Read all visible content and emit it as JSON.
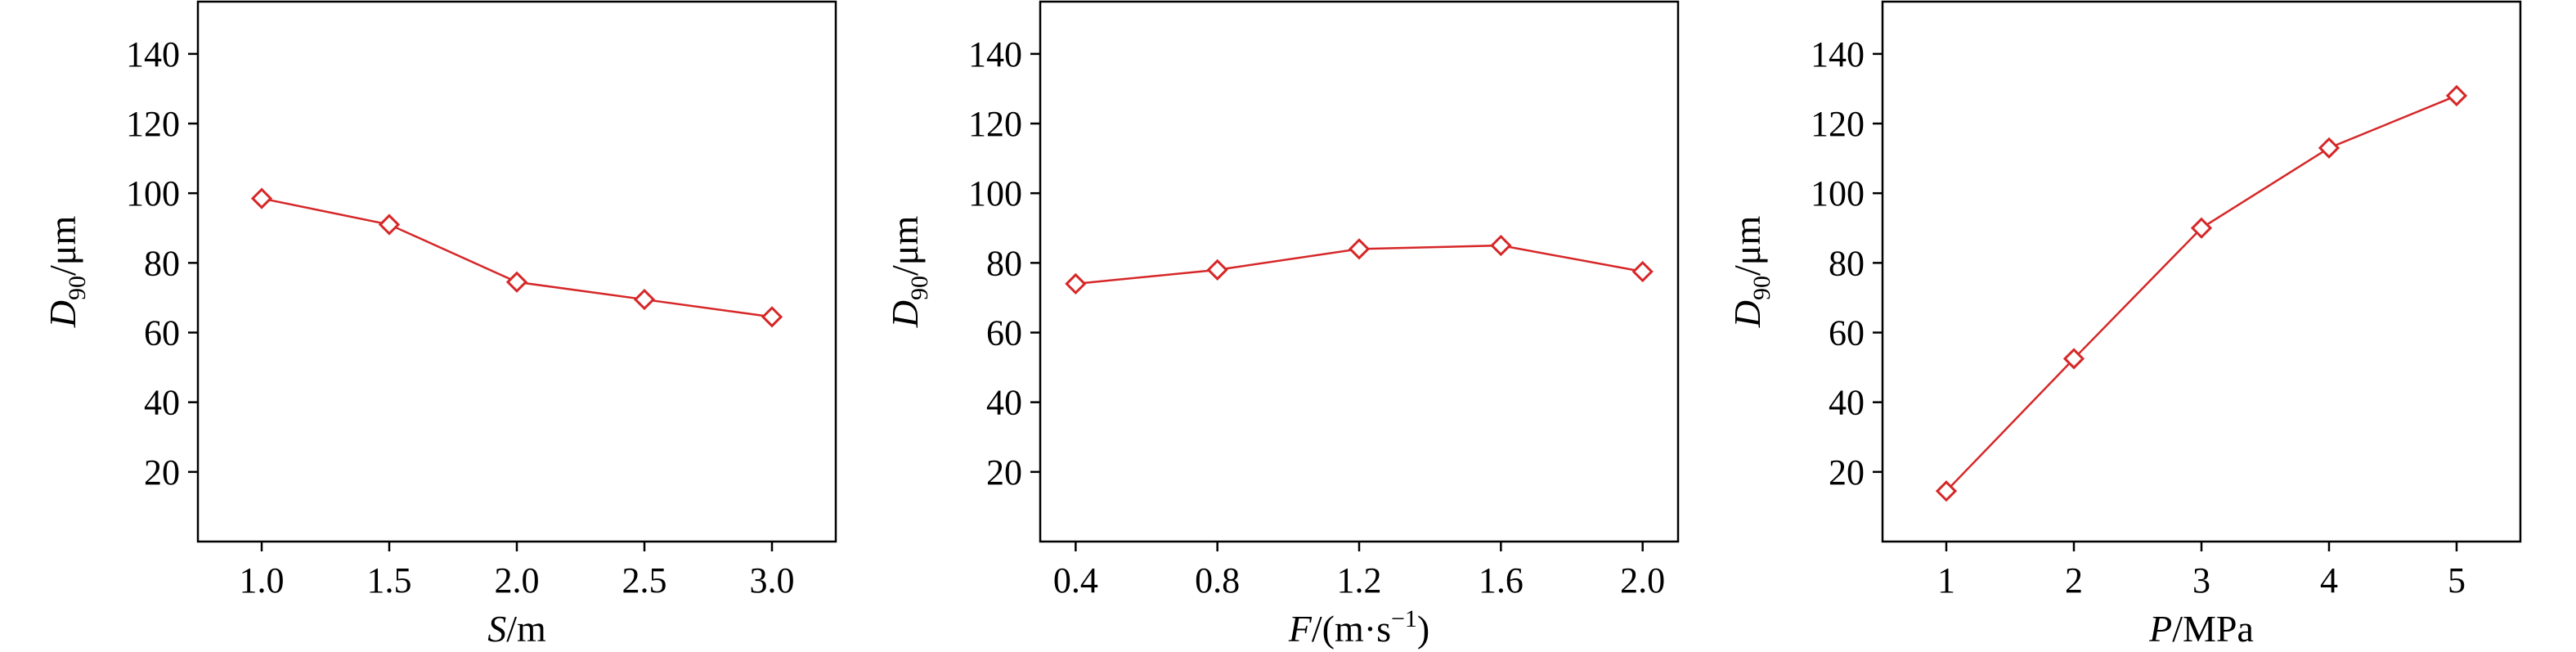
{
  "chart_data": [
    {
      "type": "line",
      "x": [
        1.0,
        1.5,
        2.0,
        2.5,
        3.0
      ],
      "x_tick_labels": [
        "1.0",
        "1.5",
        "2.0",
        "2.5",
        "3.0"
      ],
      "series": [
        {
          "values": [
            98.5,
            91,
            74.5,
            69.5,
            64.5
          ]
        }
      ],
      "xlabel": {
        "var": "S",
        "unit": "/m",
        "sup": ""
      },
      "ylabel": {
        "var": "D",
        "sub": "90",
        "unit": "/μm"
      },
      "xlim": [
        0.75,
        3.25
      ],
      "ylim": [
        0,
        155
      ],
      "y_ticks": [
        20,
        40,
        60,
        80,
        100,
        120,
        140
      ],
      "grid": false,
      "marker": "diamond-open",
      "color": "#d62728"
    },
    {
      "type": "line",
      "x": [
        0.4,
        0.8,
        1.2,
        1.6,
        2.0
      ],
      "x_tick_labels": [
        "0.4",
        "0.8",
        "1.2",
        "1.6",
        "2.0"
      ],
      "series": [
        {
          "values": [
            74,
            78,
            84,
            85,
            77.5
          ]
        }
      ],
      "xlabel": {
        "var": "F",
        "unit": "/(m·s",
        "sup": "−1",
        "unit_end": ")"
      },
      "ylabel": {
        "var": "D",
        "sub": "90",
        "unit": "/μm"
      },
      "xlim": [
        0.3,
        2.1
      ],
      "ylim": [
        0,
        155
      ],
      "y_ticks": [
        20,
        40,
        60,
        80,
        100,
        120,
        140
      ],
      "grid": false,
      "marker": "diamond-open",
      "color": "#d62728"
    },
    {
      "type": "line",
      "x": [
        1,
        2,
        3,
        4,
        5
      ],
      "x_tick_labels": [
        "1",
        "2",
        "3",
        "4",
        "5"
      ],
      "series": [
        {
          "values": [
            14.5,
            52.5,
            90,
            113,
            128
          ]
        }
      ],
      "xlabel": {
        "var": "P",
        "unit": "/MPa",
        "sup": ""
      },
      "ylabel": {
        "var": "D",
        "sub": "90",
        "unit": "/μm"
      },
      "xlim": [
        0.5,
        5.5
      ],
      "ylim": [
        0,
        155
      ],
      "y_ticks": [
        20,
        40,
        60,
        80,
        100,
        120,
        140
      ],
      "grid": false,
      "marker": "diamond-open",
      "color": "#d62728"
    }
  ]
}
